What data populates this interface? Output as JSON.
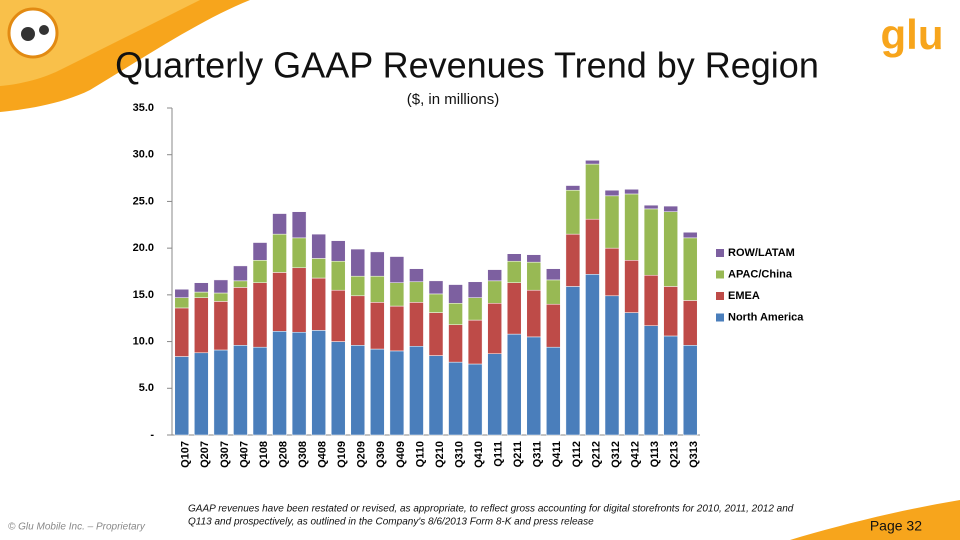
{
  "chart_data": {
    "type": "stacked_bar",
    "title": "Quarterly GAAP Revenues Trend by Region",
    "subtitle": "($, in millions)",
    "categories": [
      "Q107",
      "Q207",
      "Q307",
      "Q407",
      "Q108",
      "Q208",
      "Q308",
      "Q408",
      "Q109",
      "Q209",
      "Q309",
      "Q409",
      "Q110",
      "Q210",
      "Q310",
      "Q410",
      "Q111",
      "Q211",
      "Q311",
      "Q411",
      "Q112",
      "Q212",
      "Q312",
      "Q412",
      "Q113",
      "Q213",
      "Q313"
    ],
    "series": [
      {
        "name": "North America",
        "color": "#4a7ebb",
        "values": [
          8.4,
          8.8,
          9.1,
          9.6,
          9.4,
          11.1,
          11.0,
          11.2,
          10.0,
          9.6,
          9.2,
          9.0,
          9.5,
          8.5,
          7.8,
          7.6,
          8.7,
          10.8,
          10.5,
          9.4,
          15.9,
          17.2,
          14.9,
          13.1,
          11.7,
          10.6,
          9.6
        ]
      },
      {
        "name": "EMEA",
        "color": "#be4b48",
        "values": [
          5.2,
          5.9,
          5.2,
          6.2,
          6.9,
          6.3,
          6.9,
          5.6,
          5.5,
          5.3,
          5.0,
          4.8,
          4.7,
          4.6,
          4.0,
          4.7,
          5.4,
          5.5,
          5.0,
          4.6,
          5.6,
          5.9,
          5.1,
          5.6,
          5.4,
          5.3,
          4.8
        ]
      },
      {
        "name": "APAC/China",
        "color": "#98b954",
        "values": [
          1.1,
          0.6,
          0.9,
          0.7,
          2.4,
          4.1,
          3.2,
          2.1,
          3.1,
          2.1,
          2.8,
          2.5,
          2.2,
          2.0,
          2.3,
          2.4,
          2.4,
          2.3,
          3.0,
          2.6,
          4.7,
          5.9,
          5.6,
          7.1,
          7.1,
          8.0,
          6.7
        ]
      },
      {
        "name": "ROW/LATAM",
        "color": "#7d60a0",
        "values": [
          0.9,
          1.0,
          1.4,
          1.6,
          1.9,
          2.2,
          2.8,
          2.6,
          2.2,
          2.9,
          2.6,
          2.8,
          1.4,
          1.4,
          2.0,
          1.7,
          1.2,
          0.8,
          0.8,
          1.2,
          0.5,
          0.4,
          0.6,
          0.5,
          0.4,
          0.6,
          0.6
        ]
      }
    ],
    "ylim": [
      0,
      35
    ],
    "yticks": [
      {
        "value": 0,
        "label": "-"
      },
      {
        "value": 5,
        "label": "5.0"
      },
      {
        "value": 10,
        "label": "10.0"
      },
      {
        "value": 15,
        "label": "15.0"
      },
      {
        "value": 20,
        "label": "20.0"
      },
      {
        "value": 25,
        "label": "25.0"
      },
      {
        "value": 30,
        "label": "30.0"
      },
      {
        "value": 35,
        "label": "35.0"
      }
    ],
    "legend": "right"
  },
  "footnote": [
    "GAAP revenues have been restated or revised, as appropriate, to reflect gross accounting for digital storefronts for 2010, 2011, 2012  and",
    "Q113 and prospectively, as outlined in the Company's 8/6/2013 Form 8-K and press release"
  ],
  "copyright": "© Glu Mobile Inc. – Proprietary",
  "page": "Page 32",
  "logo": "glu"
}
